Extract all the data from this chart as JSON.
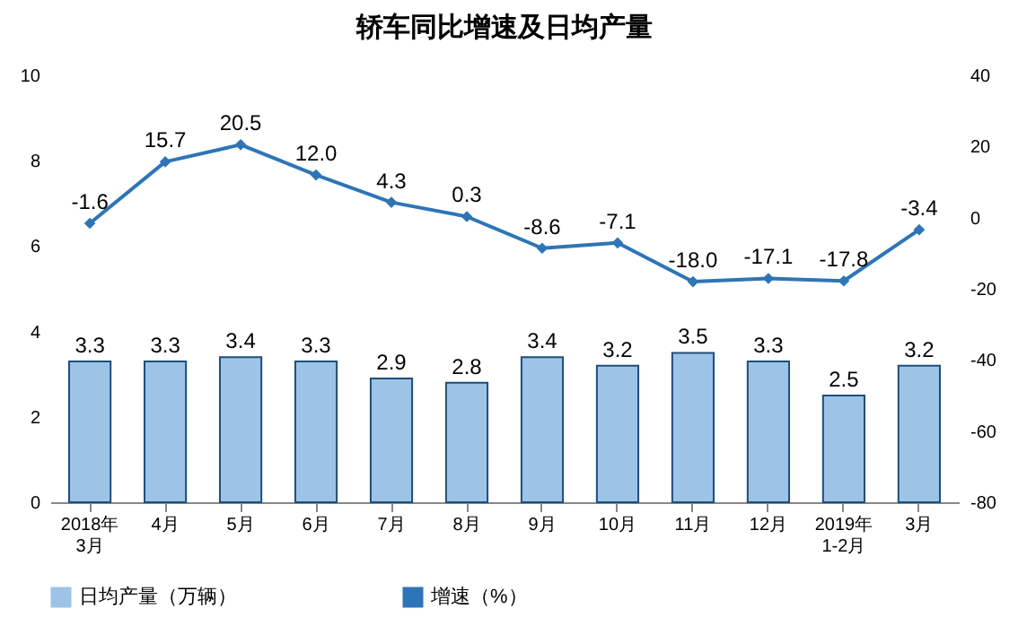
{
  "chart_data": {
    "type": "bar",
    "title": "轿车同比增速及日均产量",
    "categories": [
      "2018年\n3月",
      "4月",
      "5月",
      "6月",
      "7月",
      "8月",
      "9月",
      "10月",
      "11月",
      "12月",
      "2019年\n1-2月",
      "3月"
    ],
    "series": [
      {
        "name": "日均产量（万辆）",
        "color": "#9dc3e6",
        "values": [
          3.3,
          3.3,
          3.4,
          3.3,
          2.9,
          2.8,
          3.4,
          3.2,
          3.5,
          3.3,
          2.5,
          3.2
        ],
        "value_labels": [
          "3.3",
          "3.3",
          "3.4",
          "3.3",
          "2.9",
          "2.8",
          "3.4",
          "3.2",
          "3.5",
          "3.3",
          "2.5",
          "3.2"
        ]
      },
      {
        "name": "增速（%）",
        "type": "line",
        "axis": "y2",
        "color": "#2e75b6",
        "values": [
          -1.6,
          15.7,
          20.5,
          12.0,
          4.3,
          0.3,
          -8.6,
          -7.1,
          -18.0,
          -17.1,
          -17.8,
          -3.4
        ],
        "value_labels": [
          "-1.6",
          "15.7",
          "20.5",
          "12.0",
          "4.3",
          "0.3",
          "-8.6",
          "-7.1",
          "-18.0",
          "-17.1",
          "-17.8",
          "-3.4"
        ]
      }
    ],
    "ylim": [
      0,
      10
    ],
    "yticks": [
      0,
      2,
      4,
      6,
      8,
      10
    ],
    "y2lim": [
      -80,
      40
    ],
    "y2ticks": [
      -80,
      -60,
      -40,
      -20,
      0,
      20,
      40
    ],
    "legend": "bottom",
    "marker": "diamond",
    "grid": false
  }
}
